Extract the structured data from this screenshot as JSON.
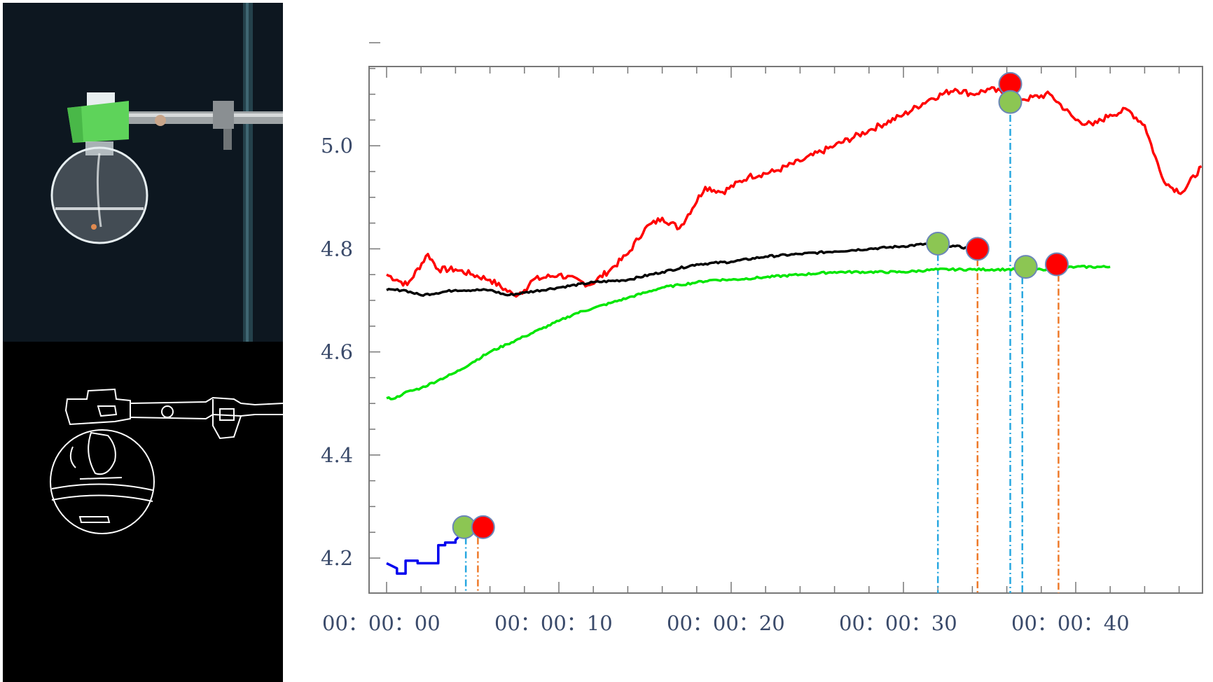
{
  "photo_panel": {
    "description_icons": [
      "flask-photo",
      "clamp-stand"
    ],
    "colors": {
      "background": "#0d1720",
      "stopper": "#5ed35a",
      "rod": "#2c4a55"
    }
  },
  "edge_panel": {
    "colors": {
      "background": "#000000",
      "edges": "#ffffff"
    }
  },
  "chart_data": {
    "type": "line",
    "title": "",
    "xlabel": "",
    "ylabel": "",
    "x_unit": "seconds",
    "xlim": [
      0,
      48
    ],
    "ylim": [
      4.15,
      5.2
    ],
    "x_ticks": [
      {
        "value": 0,
        "label": "00：00：00"
      },
      {
        "value": 10,
        "label": "00：00：10"
      },
      {
        "value": 20,
        "label": "00：00：20"
      },
      {
        "value": 30,
        "label": "00：00：30"
      },
      {
        "value": 40,
        "label": "00：00：40"
      }
    ],
    "y_ticks": [
      {
        "value": 4.2,
        "label": "4.2"
      },
      {
        "value": 4.4,
        "label": "4.4"
      },
      {
        "value": 4.6,
        "label": "4.6"
      },
      {
        "value": 4.8,
        "label": "4.8"
      },
      {
        "value": 5.0,
        "label": "5.0"
      }
    ],
    "grid": false,
    "series": [
      {
        "color": "#0000ee",
        "x": [
          0,
          0.6,
          0.6,
          1.1,
          1.1,
          1.8,
          1.8,
          3.0,
          3.0,
          3.4,
          3.4,
          4.0,
          4.0,
          4.3,
          4.5
        ],
        "y": [
          4.19,
          4.18,
          4.17,
          4.17,
          4.195,
          4.195,
          4.19,
          4.19,
          4.225,
          4.225,
          4.23,
          4.23,
          4.235,
          4.245,
          4.26
        ]
      },
      {
        "color": "#ff0000",
        "x": [
          0,
          0.6,
          1.2,
          2.4,
          3.0,
          4.0,
          5.0,
          6.0,
          7.4,
          8.0,
          8.5,
          10.0,
          11.8,
          13.0,
          14.0,
          15.0,
          16.0,
          17.0,
          18.5,
          19.5,
          21.0,
          22.5,
          24.0,
          26.0,
          28.0,
          30.0,
          31.5,
          33.0,
          34.0,
          35.0,
          36.0,
          37.0,
          38.5,
          40.0,
          41.0,
          42.0,
          43.0,
          44.0,
          45.0,
          45.5,
          46.2,
          47.3
        ],
        "y": [
          4.75,
          4.74,
          4.73,
          4.79,
          4.76,
          4.76,
          4.75,
          4.74,
          4.71,
          4.72,
          4.74,
          4.75,
          4.73,
          4.76,
          4.79,
          4.84,
          4.86,
          4.84,
          4.92,
          4.91,
          4.94,
          4.95,
          4.97,
          5.0,
          5.03,
          5.06,
          5.09,
          5.11,
          5.1,
          5.11,
          5.1,
          5.09,
          5.1,
          5.05,
          5.04,
          5.06,
          5.07,
          5.04,
          4.94,
          4.92,
          4.91,
          4.96
        ]
      },
      {
        "color": "#000000",
        "x": [
          0,
          1.0,
          2.0,
          4.0,
          6.0,
          7.0,
          8.0,
          10.0,
          12.0,
          14.0,
          16.0,
          18.0,
          20.0,
          22.0,
          24.0,
          26.0,
          28.0,
          30.0,
          31.5,
          33.0,
          34.0
        ],
        "y": [
          4.72,
          4.72,
          4.71,
          4.72,
          4.72,
          4.71,
          4.715,
          4.725,
          4.735,
          4.74,
          4.755,
          4.77,
          4.775,
          4.785,
          4.79,
          4.795,
          4.8,
          4.805,
          4.81,
          4.805,
          4.8
        ]
      },
      {
        "color": "#00e600",
        "x": [
          0,
          0.5,
          1.0,
          2.0,
          3.0,
          4.0,
          5.0,
          6.0,
          7.0,
          8.0,
          9.0,
          10.0,
          11.0,
          12.0,
          13.0,
          14.0,
          15.0,
          16.0,
          17.0,
          18.0,
          19.0,
          20.0,
          22.0,
          24.0,
          26.0,
          28.0,
          30.0,
          32.0,
          34.0,
          36.0,
          38.0,
          40.0,
          42.0
        ],
        "y": [
          4.51,
          4.51,
          4.52,
          4.53,
          4.545,
          4.56,
          4.58,
          4.6,
          4.615,
          4.63,
          4.645,
          4.66,
          4.675,
          4.685,
          4.695,
          4.705,
          4.715,
          4.725,
          4.73,
          4.735,
          4.74,
          4.74,
          4.745,
          4.75,
          4.755,
          4.755,
          4.755,
          4.76,
          4.76,
          4.76,
          4.76,
          4.765,
          4.765
        ]
      }
    ],
    "markers": [
      {
        "color": "green",
        "x": 4.5,
        "y": 4.26
      },
      {
        "color": "red",
        "x": 5.6,
        "y": 4.26
      },
      {
        "color": "green",
        "x": 32.0,
        "y": 4.81
      },
      {
        "color": "red",
        "x": 34.3,
        "y": 4.8
      },
      {
        "color": "red",
        "x": 36.2,
        "y": 5.12
      },
      {
        "color": "green",
        "x": 36.2,
        "y": 5.085
      },
      {
        "color": "green",
        "x": 37.1,
        "y": 4.765
      },
      {
        "color": "red",
        "x": 38.9,
        "y": 4.77
      }
    ],
    "drop_lines": [
      {
        "color": "#29a8e0",
        "x": 4.6,
        "y_top": 4.24
      },
      {
        "color": "#ee7a2a",
        "x": 5.3,
        "y_top": 4.24
      },
      {
        "color": "#29a8e0",
        "x": 32.0,
        "y_top": 4.79
      },
      {
        "color": "#ee7a2a",
        "x": 34.3,
        "y_top": 4.78
      },
      {
        "color": "#29a8e0",
        "x": 36.2,
        "y_top": 5.06
      },
      {
        "color": "#29a8e0",
        "x": 36.9,
        "y_top": 4.745
      },
      {
        "color": "#ee7a2a",
        "x": 39.0,
        "y_top": 4.75
      }
    ],
    "marker_colors": {
      "green": "#8cc653",
      "red": "#ff0000",
      "edge": "#6b86b8"
    }
  }
}
